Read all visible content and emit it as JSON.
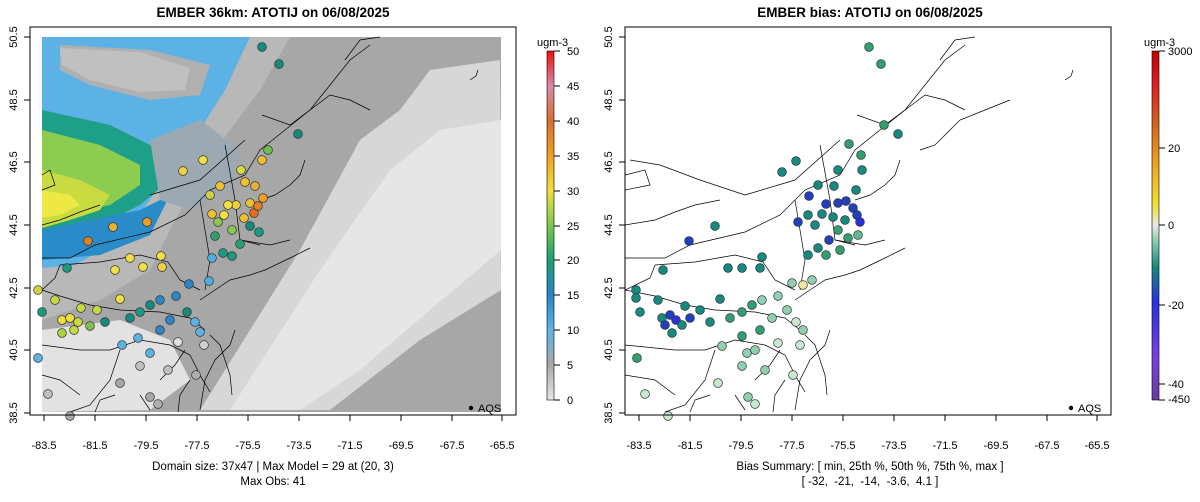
{
  "chart_data": [
    {
      "type": "heatmap",
      "title": "EMBER 36km: ATOTIJ on 06/08/2025",
      "xlim": [
        -84.5,
        -65.0
      ],
      "ylim": [
        38.5,
        50.5
      ],
      "x_ticks": [
        "-83.5",
        "-81.5",
        "-79.5",
        "-77.5",
        "-75.5",
        "-73.5",
        "-71.5",
        "-69.5",
        "-67.5",
        "-65.5"
      ],
      "y_ticks": [
        "38.5",
        "40.5",
        "42.5",
        "44.5",
        "46.5",
        "48.5",
        "50.5"
      ],
      "colorbar": {
        "unit": "ugm-3",
        "min": 0,
        "max": 50,
        "ticks": [
          "0",
          "5",
          "10",
          "15",
          "20",
          "25",
          "30",
          "35",
          "40",
          "45",
          "50"
        ]
      },
      "legend": {
        "label": "AQS",
        "position": "bottom-right"
      },
      "footer": [
        "Domain size: 37x47 | Max Model = 29 at (20, 3)",
        "Max Obs: 41"
      ]
    },
    {
      "type": "scatter",
      "title": "EMBER bias: ATOTIJ on 06/08/2025",
      "xlim": [
        -84.5,
        -65.0
      ],
      "ylim": [
        38.5,
        50.5
      ],
      "x_ticks": [
        "-83.5",
        "-81.5",
        "-79.5",
        "-77.5",
        "-75.5",
        "-73.5",
        "-71.5",
        "-69.5",
        "-67.5",
        "-65.5"
      ],
      "y_ticks": [
        "38.5",
        "40.5",
        "42.5",
        "44.5",
        "46.5",
        "48.5",
        "50.5"
      ],
      "colorbar": {
        "unit": "ugm-3",
        "ticks": [
          "3000",
          "20",
          "0",
          "-20",
          "-40",
          "-450"
        ]
      },
      "legend": {
        "label": "AQS",
        "position": "bottom-right"
      },
      "footer": [
        "Bias Summary: [ min, 25th %, 50th %, 75th %, max ]",
        "[ -32,  -21,  -14,  -3.6,  4.1 ]"
      ]
    }
  ]
}
